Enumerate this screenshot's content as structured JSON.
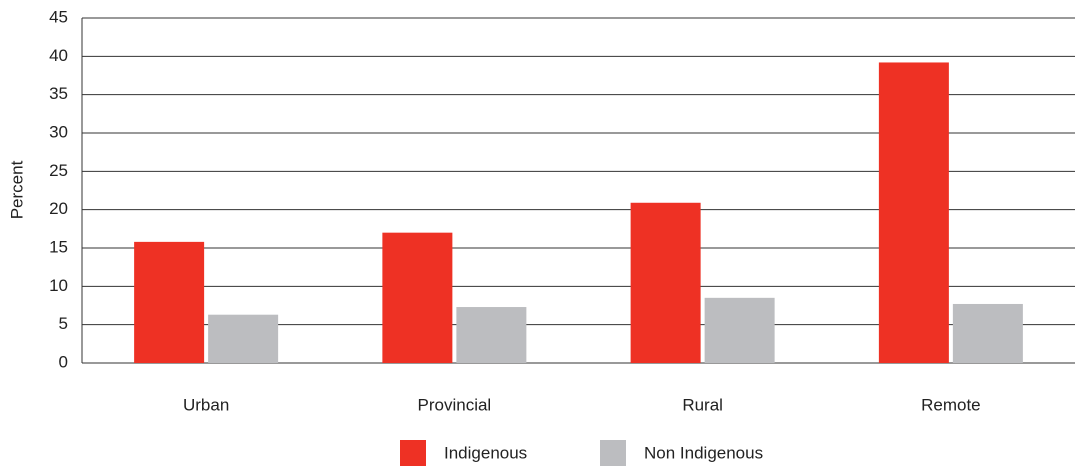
{
  "chart_data": {
    "type": "bar",
    "y_label": "Percent",
    "categories": [
      "Urban",
      "Provincial",
      "Rural",
      "Remote"
    ],
    "series": [
      {
        "name": "Indigenous",
        "color": "#ee3124",
        "values": [
          15.8,
          17.0,
          20.9,
          39.2
        ]
      },
      {
        "name": "Non Indigenous",
        "color": "#bcbdc0",
        "values": [
          6.3,
          7.3,
          8.5,
          7.7
        ]
      }
    ],
    "ylim": [
      0,
      45
    ],
    "yticks": [
      0,
      5,
      10,
      15,
      20,
      25,
      30,
      35,
      40,
      45
    ],
    "grid": true,
    "legend": "bottom"
  }
}
